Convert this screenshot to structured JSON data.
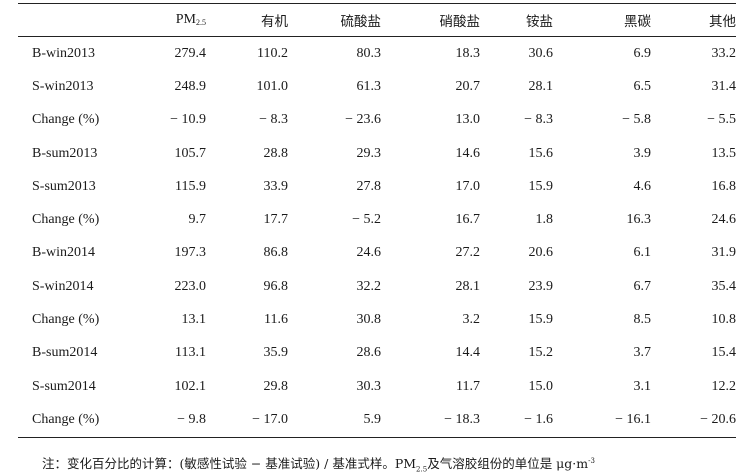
{
  "table": {
    "header_first": "",
    "pm_base": "PM",
    "pm_sub": "2.5",
    "headers": [
      "有机",
      "硫酸盐",
      "硝酸盐",
      "铵盐",
      "黑碳",
      "其他"
    ],
    "rows": [
      {
        "label": "B-win2013",
        "values": [
          "279.4",
          "110.2",
          "80.3",
          "18.3",
          "30.6",
          "6.9",
          "33.2"
        ]
      },
      {
        "label": "S-win2013",
        "values": [
          "248.9",
          "101.0",
          "61.3",
          "20.7",
          "28.1",
          "6.5",
          "31.4"
        ]
      },
      {
        "label": "Change (%)",
        "values": [
          "− 10.9",
          "− 8.3",
          "− 23.6",
          "13.0",
          "− 8.3",
          "− 5.8",
          "− 5.5"
        ]
      },
      {
        "label": "B-sum2013",
        "values": [
          "105.7",
          "28.8",
          "29.3",
          "14.6",
          "15.6",
          "3.9",
          "13.5"
        ]
      },
      {
        "label": "S-sum2013",
        "values": [
          "115.9",
          "33.9",
          "27.8",
          "17.0",
          "15.9",
          "4.6",
          "16.8"
        ]
      },
      {
        "label": "Change (%)",
        "values": [
          "9.7",
          "17.7",
          "− 5.2",
          "16.7",
          "1.8",
          "16.3",
          "24.6"
        ]
      },
      {
        "label": "B-win2014",
        "values": [
          "197.3",
          "86.8",
          "24.6",
          "27.2",
          "20.6",
          "6.1",
          "31.9"
        ]
      },
      {
        "label": "S-win2014",
        "values": [
          "223.0",
          "96.8",
          "32.2",
          "28.1",
          "23.9",
          "6.7",
          "35.4"
        ]
      },
      {
        "label": "Change (%)",
        "values": [
          "13.1",
          "11.6",
          "30.8",
          "3.2",
          "15.9",
          "8.5",
          "10.8"
        ]
      },
      {
        "label": "B-sum2014",
        "values": [
          "113.1",
          "35.9",
          "28.6",
          "14.4",
          "15.2",
          "3.7",
          "15.4"
        ]
      },
      {
        "label": "S-sum2014",
        "values": [
          "102.1",
          "29.8",
          "30.3",
          "11.7",
          "15.0",
          "3.1",
          "12.2"
        ]
      },
      {
        "label": "Change (%)",
        "values": [
          "− 9.8",
          "− 17.0",
          "5.9",
          "− 18.3",
          "− 1.6",
          "− 16.1",
          "− 20.6"
        ]
      }
    ]
  },
  "note": {
    "part1": "注：变化百分比的计算：(敏感性试验 − 基准试验) / 基准式样。PM",
    "pm_sub": "2.5",
    "part2": "及气溶胶组份的单位是 μg·m",
    "unit_sup": "-3"
  }
}
